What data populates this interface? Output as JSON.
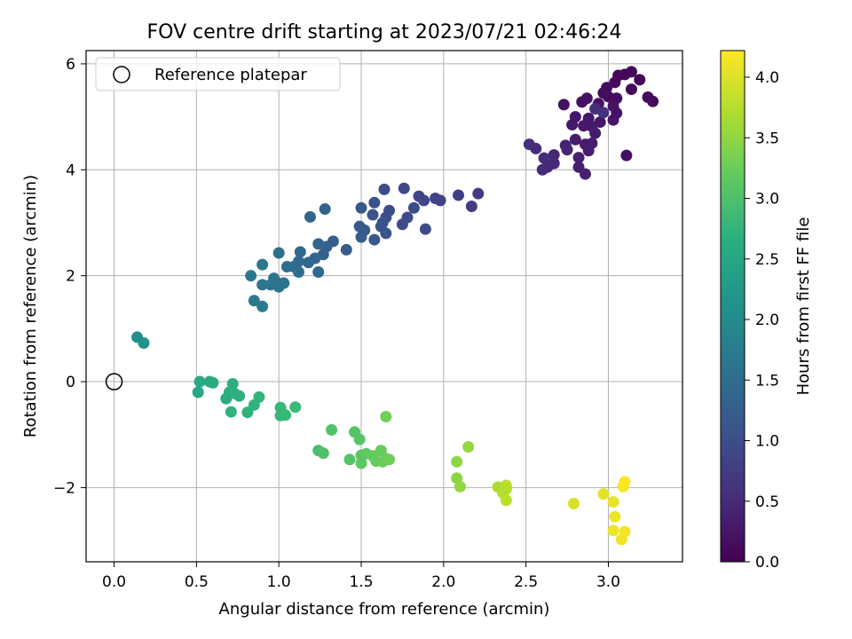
{
  "chart_data": {
    "type": "scatter",
    "title": "FOV centre drift starting at 2023/07/21 02:46:24",
    "xlabel": "Angular distance from reference (arcmin)",
    "ylabel": "Rotation from reference (arcmin)",
    "xlim": [
      -0.17,
      3.45
    ],
    "ylim": [
      -3.4,
      6.25
    ],
    "xticks": [
      0.0,
      0.5,
      1.0,
      1.5,
      2.0,
      2.5,
      3.0
    ],
    "xtick_labels": [
      "0.0",
      "0.5",
      "1.0",
      "1.5",
      "2.0",
      "2.5",
      "3.0"
    ],
    "yticks": [
      -2,
      0,
      2,
      4,
      6
    ],
    "ytick_labels": [
      "−2",
      "0",
      "2",
      "4",
      "6"
    ],
    "grid": true,
    "legend": {
      "placement": "top-left",
      "entries": [
        "Reference platepar"
      ]
    },
    "reference_point": {
      "x": 0.0,
      "y": 0.0
    },
    "colorbar": {
      "label": "Hours from first FF file",
      "colormap": "viridis",
      "range": [
        0.0,
        4.22
      ],
      "ticks": [
        0.0,
        0.5,
        1.0,
        1.5,
        2.0,
        2.5,
        3.0,
        3.5,
        4.0
      ],
      "tick_labels": [
        "0.0",
        "0.5",
        "1.0",
        "1.5",
        "2.0",
        "2.5",
        "3.0",
        "3.5",
        "4.0"
      ]
    },
    "points": [
      {
        "x": 3.1,
        "y": 5.8,
        "t": 0.05
      },
      {
        "x": 3.14,
        "y": 5.85,
        "t": 0.06
      },
      {
        "x": 3.19,
        "y": 5.7,
        "t": 0.07
      },
      {
        "x": 3.06,
        "y": 5.78,
        "t": 0.08
      },
      {
        "x": 3.04,
        "y": 5.65,
        "t": 0.09
      },
      {
        "x": 3.14,
        "y": 5.52,
        "t": 0.1
      },
      {
        "x": 3.24,
        "y": 5.37,
        "t": 0.11
      },
      {
        "x": 3.27,
        "y": 5.29,
        "t": 0.12
      },
      {
        "x": 3.0,
        "y": 5.38,
        "t": 0.13
      },
      {
        "x": 2.99,
        "y": 5.55,
        "t": 0.14
      },
      {
        "x": 2.97,
        "y": 5.45,
        "t": 0.15
      },
      {
        "x": 3.05,
        "y": 5.35,
        "t": 0.16
      },
      {
        "x": 3.11,
        "y": 4.27,
        "t": 0.17
      },
      {
        "x": 2.73,
        "y": 5.23,
        "t": 0.18
      },
      {
        "x": 2.84,
        "y": 5.28,
        "t": 0.19
      },
      {
        "x": 2.87,
        "y": 5.35,
        "t": 0.2
      },
      {
        "x": 2.94,
        "y": 5.25,
        "t": 0.21
      },
      {
        "x": 3.03,
        "y": 5.2,
        "t": 0.22
      },
      {
        "x": 3.05,
        "y": 5.07,
        "t": 0.23
      },
      {
        "x": 3.03,
        "y": 4.94,
        "t": 0.24
      },
      {
        "x": 2.95,
        "y": 4.9,
        "t": 0.25
      },
      {
        "x": 2.88,
        "y": 4.97,
        "t": 0.26
      },
      {
        "x": 2.8,
        "y": 5.0,
        "t": 0.27
      },
      {
        "x": 2.78,
        "y": 4.85,
        "t": 0.28
      },
      {
        "x": 2.85,
        "y": 4.83,
        "t": 0.29
      },
      {
        "x": 2.9,
        "y": 4.82,
        "t": 0.3
      },
      {
        "x": 2.92,
        "y": 4.69,
        "t": 0.31
      },
      {
        "x": 2.8,
        "y": 4.57,
        "t": 0.32
      },
      {
        "x": 2.86,
        "y": 4.48,
        "t": 0.33
      },
      {
        "x": 2.9,
        "y": 4.5,
        "t": 0.34
      },
      {
        "x": 2.88,
        "y": 4.36,
        "t": 0.35
      },
      {
        "x": 2.82,
        "y": 4.23,
        "t": 0.36
      },
      {
        "x": 2.82,
        "y": 4.05,
        "t": 0.37
      },
      {
        "x": 2.86,
        "y": 3.92,
        "t": 0.38
      },
      {
        "x": 2.74,
        "y": 4.46,
        "t": 0.4
      },
      {
        "x": 2.75,
        "y": 4.38,
        "t": 0.42
      },
      {
        "x": 2.67,
        "y": 4.28,
        "t": 0.44
      },
      {
        "x": 2.67,
        "y": 4.12,
        "t": 0.46
      },
      {
        "x": 2.63,
        "y": 4.05,
        "t": 0.48
      },
      {
        "x": 2.6,
        "y": 4.0,
        "t": 0.5
      },
      {
        "x": 2.61,
        "y": 4.22,
        "t": 0.52
      },
      {
        "x": 2.56,
        "y": 4.4,
        "t": 0.54
      },
      {
        "x": 2.52,
        "y": 4.48,
        "t": 0.56
      },
      {
        "x": 2.92,
        "y": 5.15,
        "t": 0.58
      },
      {
        "x": 2.97,
        "y": 5.08,
        "t": 0.6
      },
      {
        "x": 2.21,
        "y": 3.55,
        "t": 0.72
      },
      {
        "x": 2.17,
        "y": 3.31,
        "t": 0.75
      },
      {
        "x": 2.09,
        "y": 3.52,
        "t": 0.78
      },
      {
        "x": 1.98,
        "y": 3.42,
        "t": 0.82
      },
      {
        "x": 1.95,
        "y": 3.46,
        "t": 0.85
      },
      {
        "x": 1.88,
        "y": 3.42,
        "t": 0.88
      },
      {
        "x": 1.85,
        "y": 3.5,
        "t": 0.9
      },
      {
        "x": 1.76,
        "y": 3.65,
        "t": 0.92
      },
      {
        "x": 1.64,
        "y": 3.63,
        "t": 0.94
      },
      {
        "x": 1.82,
        "y": 3.28,
        "t": 0.95
      },
      {
        "x": 1.78,
        "y": 3.1,
        "t": 0.96
      },
      {
        "x": 1.75,
        "y": 2.97,
        "t": 0.97
      },
      {
        "x": 1.89,
        "y": 2.88,
        "t": 0.98
      },
      {
        "x": 1.67,
        "y": 3.23,
        "t": 1.0
      },
      {
        "x": 1.65,
        "y": 3.1,
        "t": 1.02
      },
      {
        "x": 1.58,
        "y": 3.38,
        "t": 1.04
      },
      {
        "x": 1.57,
        "y": 3.15,
        "t": 1.06
      },
      {
        "x": 1.63,
        "y": 3.0,
        "t": 1.08
      },
      {
        "x": 1.62,
        "y": 2.93,
        "t": 1.1
      },
      {
        "x": 1.65,
        "y": 2.8,
        "t": 1.12
      },
      {
        "x": 1.58,
        "y": 2.68,
        "t": 1.14
      },
      {
        "x": 1.5,
        "y": 3.28,
        "t": 1.16
      },
      {
        "x": 1.49,
        "y": 2.93,
        "t": 1.18
      },
      {
        "x": 1.52,
        "y": 2.86,
        "t": 1.2
      },
      {
        "x": 1.5,
        "y": 2.73,
        "t": 1.22
      },
      {
        "x": 1.41,
        "y": 2.49,
        "t": 1.24
      },
      {
        "x": 1.33,
        "y": 2.65,
        "t": 1.26
      },
      {
        "x": 1.29,
        "y": 2.55,
        "t": 1.28
      },
      {
        "x": 1.27,
        "y": 2.4,
        "t": 1.3
      },
      {
        "x": 1.28,
        "y": 3.26,
        "t": 1.32
      },
      {
        "x": 1.19,
        "y": 3.11,
        "t": 1.34
      },
      {
        "x": 1.24,
        "y": 2.6,
        "t": 1.36
      },
      {
        "x": 1.22,
        "y": 2.33,
        "t": 1.38
      },
      {
        "x": 1.24,
        "y": 2.07,
        "t": 1.4
      },
      {
        "x": 1.18,
        "y": 2.25,
        "t": 1.42
      },
      {
        "x": 1.13,
        "y": 2.45,
        "t": 1.44
      },
      {
        "x": 1.12,
        "y": 2.27,
        "t": 1.46
      },
      {
        "x": 1.09,
        "y": 2.17,
        "t": 1.48
      },
      {
        "x": 1.12,
        "y": 2.07,
        "t": 1.5
      },
      {
        "x": 1.05,
        "y": 2.17,
        "t": 1.52
      },
      {
        "x": 1.0,
        "y": 2.43,
        "t": 1.54
      },
      {
        "x": 1.03,
        "y": 1.86,
        "t": 1.56
      },
      {
        "x": 0.97,
        "y": 1.95,
        "t": 1.58
      },
      {
        "x": 0.99,
        "y": 1.87,
        "t": 1.6
      },
      {
        "x": 1.0,
        "y": 1.79,
        "t": 1.62
      },
      {
        "x": 0.95,
        "y": 1.83,
        "t": 1.64
      },
      {
        "x": 0.9,
        "y": 1.83,
        "t": 1.66
      },
      {
        "x": 0.9,
        "y": 2.21,
        "t": 1.68
      },
      {
        "x": 0.83,
        "y": 2.0,
        "t": 1.7
      },
      {
        "x": 0.85,
        "y": 1.53,
        "t": 1.72
      },
      {
        "x": 0.9,
        "y": 1.42,
        "t": 1.74
      },
      {
        "x": 0.14,
        "y": 0.84,
        "t": 2.1
      },
      {
        "x": 0.18,
        "y": 0.73,
        "t": 2.13
      },
      {
        "x": 0.51,
        "y": -0.2,
        "t": 2.5
      },
      {
        "x": 0.52,
        "y": 0.0,
        "t": 2.53
      },
      {
        "x": 0.58,
        "y": 0.0,
        "t": 2.56
      },
      {
        "x": 0.6,
        "y": -0.02,
        "t": 2.58
      },
      {
        "x": 0.68,
        "y": -0.32,
        "t": 2.6
      },
      {
        "x": 0.7,
        "y": -0.2,
        "t": 2.62
      },
      {
        "x": 0.72,
        "y": -0.04,
        "t": 2.64
      },
      {
        "x": 0.73,
        "y": -0.22,
        "t": 2.66
      },
      {
        "x": 0.76,
        "y": -0.27,
        "t": 2.68
      },
      {
        "x": 0.71,
        "y": -0.57,
        "t": 2.7
      },
      {
        "x": 0.81,
        "y": -0.58,
        "t": 2.72
      },
      {
        "x": 0.85,
        "y": -0.44,
        "t": 2.74
      },
      {
        "x": 0.88,
        "y": -0.29,
        "t": 2.76
      },
      {
        "x": 1.01,
        "y": -0.49,
        "t": 2.8
      },
      {
        "x": 1.01,
        "y": -0.64,
        "t": 2.82
      },
      {
        "x": 1.04,
        "y": -0.63,
        "t": 2.84
      },
      {
        "x": 1.1,
        "y": -0.48,
        "t": 2.86
      },
      {
        "x": 1.24,
        "y": -1.3,
        "t": 3.0
      },
      {
        "x": 1.27,
        "y": -1.35,
        "t": 3.02
      },
      {
        "x": 1.32,
        "y": -0.91,
        "t": 3.04
      },
      {
        "x": 1.43,
        "y": -1.47,
        "t": 3.06
      },
      {
        "x": 1.46,
        "y": -0.95,
        "t": 3.08
      },
      {
        "x": 1.49,
        "y": -1.09,
        "t": 3.1
      },
      {
        "x": 1.5,
        "y": -1.39,
        "t": 3.12
      },
      {
        "x": 1.5,
        "y": -1.54,
        "t": 3.14
      },
      {
        "x": 1.53,
        "y": -1.36,
        "t": 3.16
      },
      {
        "x": 1.57,
        "y": -1.4,
        "t": 3.18
      },
      {
        "x": 1.59,
        "y": -1.5,
        "t": 3.2
      },
      {
        "x": 1.62,
        "y": -1.3,
        "t": 3.22
      },
      {
        "x": 1.63,
        "y": -1.51,
        "t": 3.24
      },
      {
        "x": 1.65,
        "y": -1.45,
        "t": 3.26
      },
      {
        "x": 1.67,
        "y": -1.47,
        "t": 3.28
      },
      {
        "x": 1.65,
        "y": -0.66,
        "t": 3.3
      },
      {
        "x": 2.08,
        "y": -1.51,
        "t": 3.48
      },
      {
        "x": 2.08,
        "y": -1.82,
        "t": 3.5
      },
      {
        "x": 2.1,
        "y": -1.98,
        "t": 3.52
      },
      {
        "x": 2.15,
        "y": -1.23,
        "t": 3.54
      },
      {
        "x": 2.33,
        "y": -1.99,
        "t": 3.7
      },
      {
        "x": 2.36,
        "y": -2.1,
        "t": 3.72
      },
      {
        "x": 2.38,
        "y": -2.03,
        "t": 3.74
      },
      {
        "x": 2.38,
        "y": -1.96,
        "t": 3.76
      },
      {
        "x": 2.38,
        "y": -2.24,
        "t": 3.78
      },
      {
        "x": 2.79,
        "y": -2.3,
        "t": 3.98
      },
      {
        "x": 2.97,
        "y": -2.12,
        "t": 4.05
      },
      {
        "x": 3.03,
        "y": -2.27,
        "t": 4.08
      },
      {
        "x": 3.04,
        "y": -2.55,
        "t": 4.1
      },
      {
        "x": 3.03,
        "y": -2.81,
        "t": 4.12
      },
      {
        "x": 3.08,
        "y": -2.98,
        "t": 4.14
      },
      {
        "x": 3.1,
        "y": -2.83,
        "t": 4.16
      },
      {
        "x": 3.09,
        "y": -1.98,
        "t": 4.18
      },
      {
        "x": 3.1,
        "y": -1.89,
        "t": 4.22
      }
    ]
  }
}
